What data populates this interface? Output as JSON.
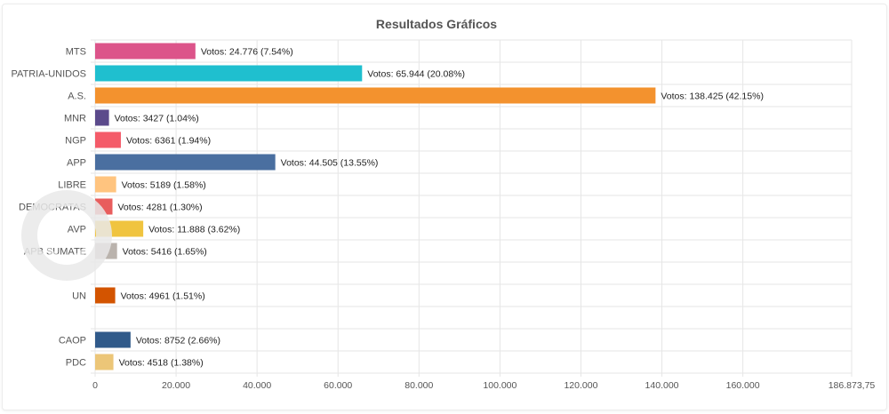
{
  "chart_data": {
    "type": "bar",
    "orientation": "horizontal",
    "title": "Resultados Gráficos",
    "xlabel": "",
    "ylabel": "",
    "xlim": [
      0,
      186873.75
    ],
    "x_ticks": [
      0,
      20000,
      40000,
      60000,
      80000,
      100000,
      120000,
      140000,
      160000,
      186873.75
    ],
    "x_tick_labels": [
      "0",
      "20.000",
      "40.000",
      "60.000",
      "80.000",
      "100.000",
      "120.000",
      "140.000",
      "160.000",
      "186.873,75"
    ],
    "grid": true,
    "legend": "none",
    "categories": [
      "MTS",
      "PATRIA-UNIDOS",
      "A.S.",
      "MNR",
      "NGP",
      "APP",
      "LIBRE",
      "DEMOCRATAS",
      "AVP",
      "APB SUMATE",
      "",
      "UN",
      "",
      "CAOP",
      "PDC"
    ],
    "values": [
      24776,
      65944,
      138425,
      3427,
      6361,
      44505,
      5189,
      4281,
      11888,
      5416,
      0,
      4961,
      0,
      8752,
      4518
    ],
    "data_labels": [
      "Votos: 24.776 (7.54%)",
      "Votos: 65.944 (20.08%)",
      "Votos: 138.425 (42.15%)",
      "Votos: 3427 (1.04%)",
      "Votos: 6361 (1.94%)",
      "Votos: 44.505 (13.55%)",
      "Votos: 5189 (1.58%)",
      "Votos: 4281 (1.30%)",
      "Votos: 11.888 (3.62%)",
      "Votos: 5416 (1.65%)",
      "",
      "Votos: 4961 (1.51%)",
      "",
      "Votos: 8752 (2.66%)",
      "Votos: 4518 (1.38%)"
    ],
    "colors": [
      "#dc548a",
      "#1fbfcf",
      "#f3922e",
      "#5b4a8b",
      "#f45b69",
      "#4a6fa0",
      "#ffc47f",
      "#e85d5d",
      "#f0c43f",
      "#bab3ad",
      "#ffffff",
      "#d35400",
      "#ffffff",
      "#305a8a",
      "#ecc678"
    ]
  }
}
